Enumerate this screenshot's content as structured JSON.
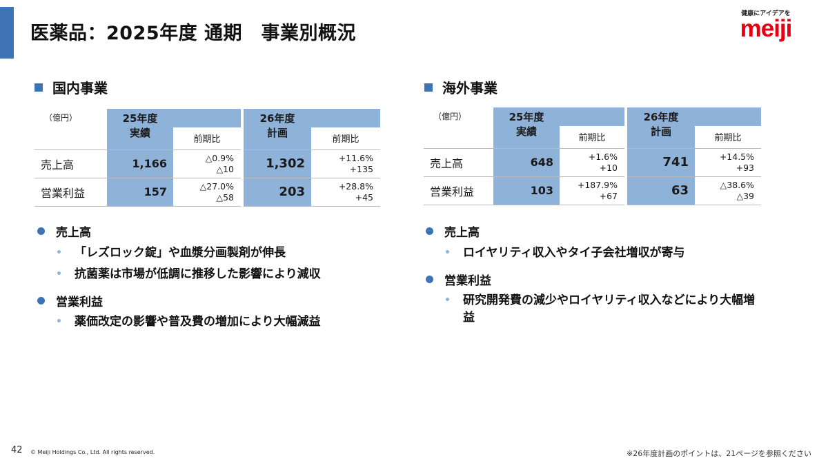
{
  "title": "医薬品：2025年度 通期　事業別概況",
  "logo": {
    "tagline": "健康にアイデアを",
    "wordmark": "meiji"
  },
  "domestic": {
    "heading": "国内事業",
    "unit": "（億円）",
    "col_fy25": "25年度\n実績",
    "col_fy26": "26年度\n計画",
    "col_yoy": "前期比",
    "rows": [
      {
        "label": "売上高",
        "fy25": "1,166",
        "yoy25_pct": "△0.9%",
        "yoy25_abs": "△10",
        "fy26": "1,302",
        "yoy26_pct": "+11.6%",
        "yoy26_abs": "+135"
      },
      {
        "label": "営業利益",
        "fy25": "157",
        "yoy25_pct": "△27.0%",
        "yoy25_abs": "△58",
        "fy26": "203",
        "yoy26_pct": "+28.8%",
        "yoy26_abs": "+45"
      }
    ],
    "bullets": [
      {
        "title": "売上高",
        "items": [
          "「レズロック錠」や血漿分画製剤が伸長",
          "抗菌薬は市場が低調に推移した影響により減収"
        ]
      },
      {
        "title": "営業利益",
        "items": [
          "薬価改定の影響や普及費の増加により大幅減益"
        ]
      }
    ]
  },
  "overseas": {
    "heading": "海外事業",
    "unit": "（億円）",
    "col_fy25": "25年度\n実績",
    "col_fy26": "26年度\n計画",
    "col_yoy": "前期比",
    "rows": [
      {
        "label": "売上高",
        "fy25": "648",
        "yoy25_pct": "+1.6%",
        "yoy25_abs": "+10",
        "fy26": "741",
        "yoy26_pct": "+14.5%",
        "yoy26_abs": "+93"
      },
      {
        "label": "営業利益",
        "fy25": "103",
        "yoy25_pct": "+187.9%",
        "yoy25_abs": "+67",
        "fy26": "63",
        "yoy26_pct": "△38.6%",
        "yoy26_abs": "△39"
      }
    ],
    "bullets": [
      {
        "title": "売上高",
        "items": [
          "ロイヤリティ収入やタイ子会社増収が寄与"
        ]
      },
      {
        "title": "営業利益",
        "items": [
          "研究開発費の減少やロイヤリティ収入などにより大幅増益"
        ]
      }
    ]
  },
  "footer": {
    "page_number": "42",
    "copyright": "© Meiji Holdings Co., Ltd. All rights reserved.",
    "note": "※26年度計画のポイントは、21ページを参照ください"
  },
  "colors": {
    "accent": "#3e74b5",
    "table_fill": "#8fb2d9",
    "brand_red": "#e60012"
  }
}
